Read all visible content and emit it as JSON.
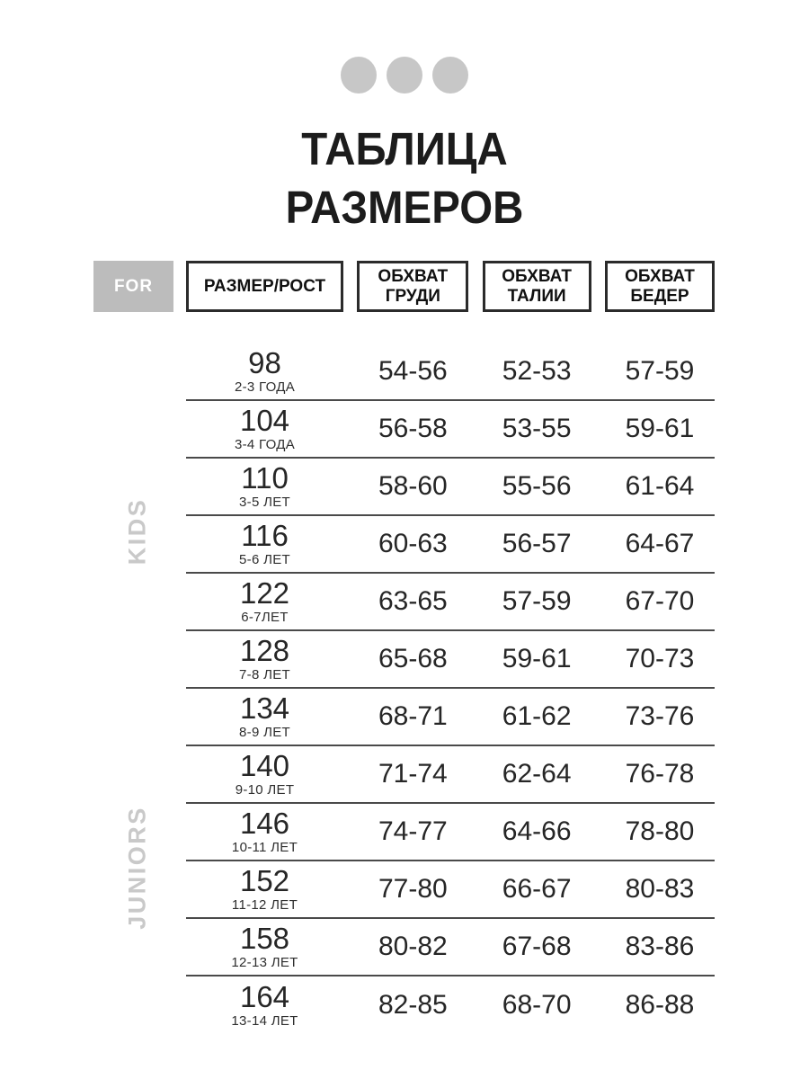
{
  "title": {
    "line1": "ТАБЛИЦА",
    "line2": "РАЗМЕРОВ"
  },
  "header": {
    "for_label": "FOR"
  },
  "side_labels": {
    "kids": "KIDS",
    "juniors": "JUNIORS"
  },
  "colors": {
    "dot_gray": "#c7c7c7",
    "for_box_gray": "#bcbcbc",
    "side_label_gray": "#c9c9c9",
    "separator": "#4a4a4a",
    "header_border": "#2b2b2b",
    "text": "#262626"
  },
  "chart_data": {
    "type": "table",
    "title": "ТАБЛИЦА РАЗМЕРОВ",
    "columns": [
      "РАЗМЕР/РОСТ",
      "ОБХВАТ ГРУДИ",
      "ОБХВАТ ТАЛИИ",
      "ОБХВАТ БЕДЕР"
    ],
    "row_group_labels": [
      "KIDS",
      "JUNIORS"
    ],
    "rows": [
      {
        "size": "98",
        "age": "2-3 ГОДА",
        "chest": "54-56",
        "waist": "52-53",
        "hips": "57-59"
      },
      {
        "size": "104",
        "age": "3-4 ГОДА",
        "chest": "56-58",
        "waist": "53-55",
        "hips": "59-61"
      },
      {
        "size": "110",
        "age": "3-5 ЛЕТ",
        "chest": "58-60",
        "waist": "55-56",
        "hips": "61-64"
      },
      {
        "size": "116",
        "age": "5-6 ЛЕТ",
        "chest": "60-63",
        "waist": "56-57",
        "hips": "64-67"
      },
      {
        "size": "122",
        "age": "6-7ЛЕТ",
        "chest": "63-65",
        "waist": "57-59",
        "hips": "67-70"
      },
      {
        "size": "128",
        "age": "7-8 ЛЕТ",
        "chest": "65-68",
        "waist": "59-61",
        "hips": "70-73"
      },
      {
        "size": "134",
        "age": "8-9 ЛЕТ",
        "chest": "68-71",
        "waist": "61-62",
        "hips": "73-76"
      },
      {
        "size": "140",
        "age": "9-10 ЛЕТ",
        "chest": "71-74",
        "waist": "62-64",
        "hips": "76-78"
      },
      {
        "size": "146",
        "age": "10-11 ЛЕТ",
        "chest": "74-77",
        "waist": "64-66",
        "hips": "78-80"
      },
      {
        "size": "152",
        "age": "11-12 ЛЕТ",
        "chest": "77-80",
        "waist": "66-67",
        "hips": "80-83"
      },
      {
        "size": "158",
        "age": "12-13 ЛЕТ",
        "chest": "80-82",
        "waist": "67-68",
        "hips": "83-86"
      },
      {
        "size": "164",
        "age": "13-14 ЛЕТ",
        "chest": "82-85",
        "waist": "68-70",
        "hips": "86-88"
      }
    ]
  }
}
